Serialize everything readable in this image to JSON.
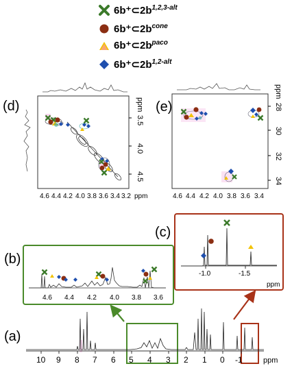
{
  "colors": {
    "green": "#3b7a2a",
    "brown": "#8b2e12",
    "yellow": "#f2c200",
    "pink": "#ff8fd0",
    "blue": "#1f4fae",
    "box_green": "#4a8a2a",
    "box_red": "#a83218",
    "pink_highlight": "#f7c6e8"
  },
  "legend": [
    {
      "species": "6b⁺⊂2b",
      "super": "1,2,3-alt",
      "marker": "x-cross",
      "color": "#3b7a2a"
    },
    {
      "species": "6b⁺⊂2b",
      "super": "cone",
      "marker": "circle",
      "color": "#8b2e12"
    },
    {
      "species": "6b⁺⊂2b",
      "super": "paco",
      "marker": "triangle",
      "color": "#f2c200"
    },
    {
      "species": "6b⁺⊂2b",
      "super": "1,2-alt",
      "marker": "diamond",
      "color": "#1f4fae"
    }
  ],
  "chart_data": [
    {
      "panel": "(a)",
      "type": "line",
      "xlabel": "ppm",
      "x_ticks": [
        "10",
        "9",
        "8",
        "7",
        "6",
        "5",
        "4",
        "3",
        "2",
        "1",
        "0",
        "-1"
      ],
      "xlim": [
        11,
        -2.5
      ],
      "peaks_ppm": [
        7.6,
        7.4,
        7.25,
        7.1,
        7.0,
        6.8,
        4.5,
        4.3,
        4.0,
        3.8,
        3.6,
        1.7,
        1.5,
        1.35,
        1.2,
        1.05,
        0.9,
        0.2,
        -1.05,
        -1.5
      ]
    },
    {
      "panel": "(b)",
      "type": "line",
      "xlabel": "ppm",
      "x_ticks": [
        "4.6",
        "4.4",
        "4.2",
        "4.0",
        "3.8",
        "3.6"
      ],
      "xlim": [
        4.7,
        3.4
      ],
      "peaks_ppm": [
        4.52,
        4.47,
        4.4,
        4.35,
        4.3,
        3.95,
        3.9,
        3.85,
        3.8,
        3.55,
        3.5,
        3.47
      ]
    },
    {
      "panel": "(c)",
      "type": "line",
      "xlabel": "ppm",
      "x_ticks": [
        "-1.0",
        "-1.5"
      ],
      "xlim": [
        -0.65,
        -1.75
      ],
      "peaks_ppm": [
        -1.05,
        -1.18,
        -1.5
      ]
    },
    {
      "panel": "(d)",
      "type": "scatter",
      "xlabel": "ppm",
      "ylabel": "ppm",
      "x_ticks": [
        "4.6",
        "4.4",
        "4.2",
        "4.0",
        "3.8",
        "3.6",
        "3.4",
        "3.2"
      ],
      "y_ticks": [
        "3.5",
        "4.0",
        "4.5"
      ],
      "xlim": [
        4.7,
        3.1
      ],
      "ylim": [
        3.1,
        4.8
      ]
    },
    {
      "panel": "(e)",
      "type": "scatter",
      "xlabel": "ppm",
      "ylabel": "ppm",
      "x_ticks": [
        "4.6",
        "4.4",
        "4.2",
        "4.0",
        "3.8",
        "3.6",
        "3.4"
      ],
      "y_ticks": [
        "28",
        "30",
        "32",
        "34"
      ],
      "xlim": [
        4.7,
        3.3
      ],
      "ylim": [
        27,
        35
      ]
    }
  ],
  "labels": {
    "a": "(a)",
    "b": "(b)",
    "c": "(c)",
    "d": "(d)",
    "e": "(e)",
    "ppm": "ppm"
  }
}
